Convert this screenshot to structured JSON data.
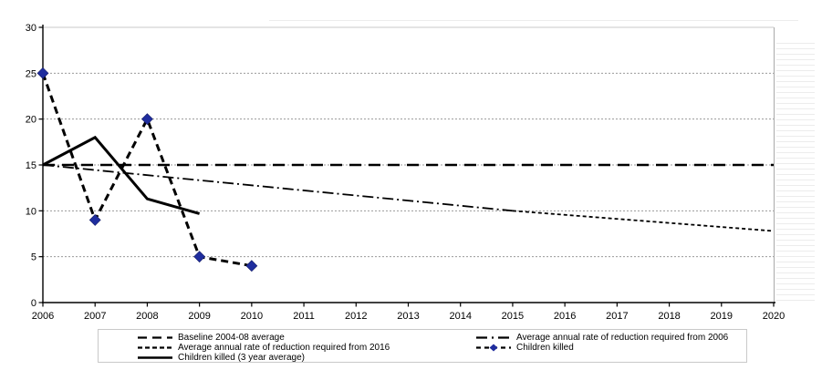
{
  "chart_data": {
    "type": "line",
    "title": "",
    "xlabel": "",
    "ylabel": "",
    "xlim": [
      2006,
      2020
    ],
    "ylim": [
      0,
      30
    ],
    "xticks": [
      2006,
      2007,
      2008,
      2009,
      2010,
      2011,
      2012,
      2013,
      2014,
      2015,
      2016,
      2017,
      2018,
      2019,
      2020
    ],
    "yticks": [
      0,
      5,
      10,
      15,
      20,
      25,
      30
    ],
    "grid": "horizontal dashed gridlines at 5-unit intervals, solid light line at 30",
    "legend_position": "bottom, two columns, bordered box",
    "colors": {
      "line": "#000000",
      "marker": "#1F2D9E",
      "gridline": "#999999",
      "grid_top": "#C8C8C8",
      "plot_right_border": "#AAAAAA",
      "axis": "#000000"
    },
    "series": [
      {
        "id": "baseline",
        "name": "Baseline 2004-08 average",
        "style": "long-dash",
        "points": [
          {
            "x": 2006,
            "y": 15
          },
          {
            "x": 2020,
            "y": 15
          }
        ]
      },
      {
        "id": "arr2016",
        "name": "Average annual rate of reduction required from 2016",
        "style": "fine-dash",
        "points": [
          {
            "x": 2015,
            "y": 10
          },
          {
            "x": 2020,
            "y": 7.8
          }
        ]
      },
      {
        "id": "avg3yr",
        "name": "Children killed (3 year average)",
        "style": "solid",
        "points": [
          {
            "x": 2006,
            "y": 15
          },
          {
            "x": 2007,
            "y": 18
          },
          {
            "x": 2008,
            "y": 11.3
          },
          {
            "x": 2009,
            "y": 9.7
          }
        ]
      },
      {
        "id": "arr2006",
        "name": "Average annual rate of reduction required from 2006",
        "style": "dash-dot",
        "points": [
          {
            "x": 2006,
            "y": 15
          },
          {
            "x": 2015,
            "y": 10
          }
        ]
      },
      {
        "id": "children",
        "name": "Children killed",
        "style": "dash-marker",
        "marker": "diamond",
        "points": [
          {
            "x": 2006,
            "y": 25
          },
          {
            "x": 2007,
            "y": 9
          },
          {
            "x": 2008,
            "y": 20
          },
          {
            "x": 2009,
            "y": 5
          },
          {
            "x": 2010,
            "y": 4
          }
        ]
      }
    ]
  }
}
